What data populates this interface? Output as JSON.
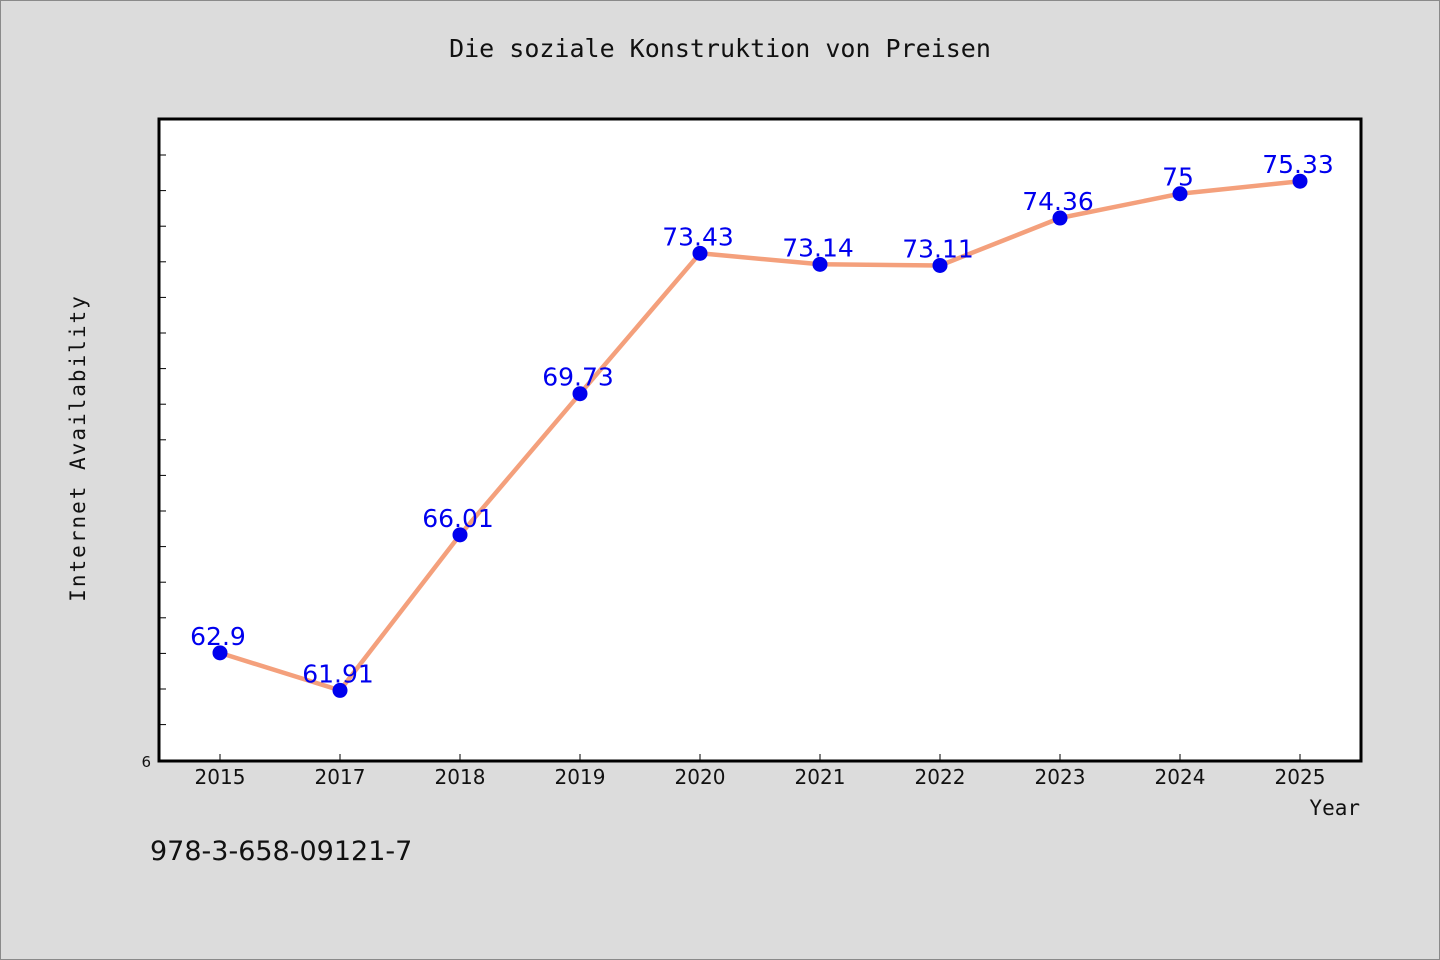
{
  "chart_data": {
    "type": "line",
    "title": "Die soziale Konstruktion von Preisen",
    "xlabel": "Year",
    "ylabel": "Internet Availability",
    "categories": [
      "2015",
      "2017",
      "2018",
      "2019",
      "2020",
      "2021",
      "2022",
      "2023",
      "2024",
      "2025"
    ],
    "series": [
      {
        "values": [
          62.9,
          61.91,
          66.01,
          69.73,
          73.43,
          73.14,
          73.11,
          74.36,
          75,
          75.33
        ],
        "data_labels": [
          "62.9",
          "61.91",
          "66.01",
          "69.73",
          "73.43",
          "73.14",
          "73.11",
          "74.36",
          "75",
          "75.33"
        ],
        "line_color": "#f4a07c",
        "marker_color": "#0000ee",
        "label_color": "#0000ee"
      }
    ],
    "ytick_labels": [
      "6"
    ],
    "ylim": [
      60.05,
      76.97
    ],
    "grid": false,
    "legend": "none"
  },
  "footer": {
    "isbn": "978-3-658-09121-7"
  }
}
